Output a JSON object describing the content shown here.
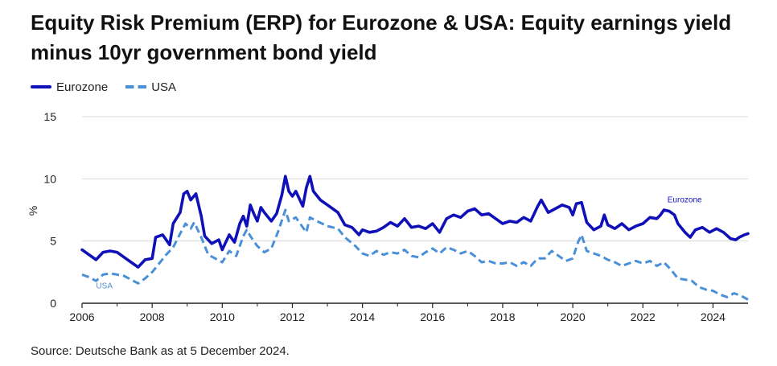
{
  "header": {
    "title": "Equity Risk Premium (ERP) for Eurozone & USA: Equity earnings yield minus 10yr government bond yield"
  },
  "legend": {
    "items": [
      {
        "label": "Eurozone",
        "style": "solid"
      },
      {
        "label": "USA",
        "style": "dashed"
      }
    ]
  },
  "footer": {
    "source": "Source: Deutsche Bank as at 5 December 2024."
  },
  "colors": {
    "eurozone": "#1010b8",
    "usa": "#4a90d9",
    "grid": "#d9d9d9",
    "axis": "#222222"
  },
  "chart_data": {
    "type": "line",
    "ylabel": "%",
    "xlim": [
      2006,
      2025
    ],
    "ylim": [
      0,
      15
    ],
    "x_ticks": [
      2006,
      2008,
      2010,
      2012,
      2014,
      2016,
      2018,
      2020,
      2022,
      2024
    ],
    "y_ticks": [
      0,
      5,
      10,
      15
    ],
    "grid": "horizontal",
    "legend_position": "top-left",
    "annotations": [
      {
        "text": "Eurozone",
        "x": 2022.7,
        "y": 8.1
      },
      {
        "text": "USA",
        "x": 2006.4,
        "y": 1.2
      }
    ],
    "series": [
      {
        "name": "Eurozone",
        "style": "solid",
        "points": [
          [
            2006.0,
            4.3
          ],
          [
            2006.2,
            3.9
          ],
          [
            2006.4,
            3.5
          ],
          [
            2006.6,
            4.1
          ],
          [
            2006.8,
            4.2
          ],
          [
            2007.0,
            4.1
          ],
          [
            2007.2,
            3.7
          ],
          [
            2007.4,
            3.3
          ],
          [
            2007.6,
            2.9
          ],
          [
            2007.8,
            3.5
          ],
          [
            2008.0,
            3.6
          ],
          [
            2008.1,
            5.3
          ],
          [
            2008.3,
            5.5
          ],
          [
            2008.5,
            4.7
          ],
          [
            2008.6,
            6.4
          ],
          [
            2008.8,
            7.3
          ],
          [
            2008.9,
            8.8
          ],
          [
            2009.0,
            9.0
          ],
          [
            2009.1,
            8.3
          ],
          [
            2009.25,
            8.8
          ],
          [
            2009.4,
            7.0
          ],
          [
            2009.5,
            5.4
          ],
          [
            2009.7,
            4.8
          ],
          [
            2009.9,
            5.1
          ],
          [
            2010.0,
            4.3
          ],
          [
            2010.2,
            5.5
          ],
          [
            2010.35,
            4.9
          ],
          [
            2010.5,
            6.4
          ],
          [
            2010.6,
            7.0
          ],
          [
            2010.7,
            6.2
          ],
          [
            2010.8,
            7.9
          ],
          [
            2010.9,
            7.2
          ],
          [
            2011.0,
            6.6
          ],
          [
            2011.1,
            7.7
          ],
          [
            2011.2,
            7.3
          ],
          [
            2011.4,
            6.6
          ],
          [
            2011.55,
            7.2
          ],
          [
            2011.7,
            8.7
          ],
          [
            2011.8,
            10.2
          ],
          [
            2011.9,
            9.0
          ],
          [
            2012.0,
            8.6
          ],
          [
            2012.1,
            9.0
          ],
          [
            2012.3,
            7.8
          ],
          [
            2012.4,
            9.3
          ],
          [
            2012.5,
            10.2
          ],
          [
            2012.6,
            9.0
          ],
          [
            2012.8,
            8.3
          ],
          [
            2013.0,
            7.9
          ],
          [
            2013.3,
            7.3
          ],
          [
            2013.5,
            6.3
          ],
          [
            2013.7,
            6.1
          ],
          [
            2013.9,
            5.5
          ],
          [
            2014.0,
            5.9
          ],
          [
            2014.2,
            5.7
          ],
          [
            2014.4,
            5.8
          ],
          [
            2014.6,
            6.1
          ],
          [
            2014.8,
            6.5
          ],
          [
            2015.0,
            6.2
          ],
          [
            2015.2,
            6.8
          ],
          [
            2015.4,
            6.1
          ],
          [
            2015.6,
            6.2
          ],
          [
            2015.8,
            6.0
          ],
          [
            2016.0,
            6.4
          ],
          [
            2016.2,
            5.7
          ],
          [
            2016.4,
            6.8
          ],
          [
            2016.6,
            7.1
          ],
          [
            2016.8,
            6.9
          ],
          [
            2017.0,
            7.4
          ],
          [
            2017.2,
            7.6
          ],
          [
            2017.4,
            7.1
          ],
          [
            2017.6,
            7.2
          ],
          [
            2017.8,
            6.8
          ],
          [
            2018.0,
            6.4
          ],
          [
            2018.2,
            6.6
          ],
          [
            2018.4,
            6.5
          ],
          [
            2018.6,
            6.9
          ],
          [
            2018.8,
            6.6
          ],
          [
            2019.0,
            7.8
          ],
          [
            2019.1,
            8.3
          ],
          [
            2019.3,
            7.3
          ],
          [
            2019.5,
            7.6
          ],
          [
            2019.7,
            7.9
          ],
          [
            2019.9,
            7.7
          ],
          [
            2020.0,
            7.1
          ],
          [
            2020.1,
            8.0
          ],
          [
            2020.25,
            8.1
          ],
          [
            2020.4,
            6.5
          ],
          [
            2020.6,
            5.9
          ],
          [
            2020.8,
            6.2
          ],
          [
            2020.9,
            7.1
          ],
          [
            2021.0,
            6.3
          ],
          [
            2021.2,
            6.0
          ],
          [
            2021.4,
            6.4
          ],
          [
            2021.6,
            5.9
          ],
          [
            2021.8,
            6.2
          ],
          [
            2022.0,
            6.4
          ],
          [
            2022.2,
            6.9
          ],
          [
            2022.4,
            6.8
          ],
          [
            2022.5,
            7.1
          ],
          [
            2022.6,
            7.5
          ],
          [
            2022.75,
            7.4
          ],
          [
            2022.9,
            7.1
          ],
          [
            2023.0,
            6.4
          ],
          [
            2023.2,
            5.7
          ],
          [
            2023.35,
            5.3
          ],
          [
            2023.5,
            5.9
          ],
          [
            2023.7,
            6.1
          ],
          [
            2023.9,
            5.7
          ],
          [
            2024.1,
            6.0
          ],
          [
            2024.3,
            5.7
          ],
          [
            2024.5,
            5.2
          ],
          [
            2024.65,
            5.1
          ],
          [
            2024.75,
            5.3
          ],
          [
            2024.9,
            5.5
          ],
          [
            2025.0,
            5.6
          ]
        ]
      },
      {
        "name": "USA",
        "style": "dashed",
        "points": [
          [
            2006.0,
            2.3
          ],
          [
            2006.2,
            2.1
          ],
          [
            2006.4,
            1.8
          ],
          [
            2006.6,
            2.3
          ],
          [
            2006.8,
            2.4
          ],
          [
            2007.0,
            2.3
          ],
          [
            2007.2,
            2.2
          ],
          [
            2007.4,
            1.9
          ],
          [
            2007.6,
            1.6
          ],
          [
            2007.8,
            2.0
          ],
          [
            2008.0,
            2.5
          ],
          [
            2008.2,
            3.2
          ],
          [
            2008.4,
            3.9
          ],
          [
            2008.6,
            4.5
          ],
          [
            2008.8,
            5.6
          ],
          [
            2008.95,
            6.4
          ],
          [
            2009.1,
            6.0
          ],
          [
            2009.2,
            6.5
          ],
          [
            2009.4,
            5.3
          ],
          [
            2009.6,
            3.9
          ],
          [
            2009.8,
            3.6
          ],
          [
            2010.0,
            3.3
          ],
          [
            2010.2,
            4.2
          ],
          [
            2010.4,
            3.8
          ],
          [
            2010.6,
            5.4
          ],
          [
            2010.7,
            5.9
          ],
          [
            2010.8,
            5.4
          ],
          [
            2011.0,
            4.6
          ],
          [
            2011.2,
            4.1
          ],
          [
            2011.4,
            4.4
          ],
          [
            2011.6,
            5.8
          ],
          [
            2011.8,
            7.5
          ],
          [
            2011.9,
            6.6
          ],
          [
            2012.1,
            6.9
          ],
          [
            2012.3,
            6.1
          ],
          [
            2012.4,
            5.7
          ],
          [
            2012.5,
            6.9
          ],
          [
            2012.7,
            6.6
          ],
          [
            2013.0,
            6.2
          ],
          [
            2013.3,
            6.0
          ],
          [
            2013.5,
            5.3
          ],
          [
            2013.8,
            4.6
          ],
          [
            2014.0,
            4.0
          ],
          [
            2014.2,
            3.8
          ],
          [
            2014.4,
            4.2
          ],
          [
            2014.6,
            3.9
          ],
          [
            2014.8,
            4.1
          ],
          [
            2015.0,
            4.0
          ],
          [
            2015.2,
            4.3
          ],
          [
            2015.4,
            3.8
          ],
          [
            2015.6,
            3.7
          ],
          [
            2015.8,
            4.1
          ],
          [
            2016.0,
            4.4
          ],
          [
            2016.2,
            4.0
          ],
          [
            2016.4,
            4.5
          ],
          [
            2016.6,
            4.3
          ],
          [
            2016.8,
            4.0
          ],
          [
            2017.0,
            4.2
          ],
          [
            2017.2,
            3.8
          ],
          [
            2017.4,
            3.3
          ],
          [
            2017.6,
            3.4
          ],
          [
            2017.8,
            3.2
          ],
          [
            2018.0,
            3.2
          ],
          [
            2018.2,
            3.3
          ],
          [
            2018.4,
            3.0
          ],
          [
            2018.6,
            3.3
          ],
          [
            2018.8,
            3.0
          ],
          [
            2019.0,
            3.6
          ],
          [
            2019.2,
            3.6
          ],
          [
            2019.4,
            4.2
          ],
          [
            2019.6,
            3.8
          ],
          [
            2019.8,
            3.4
          ],
          [
            2020.0,
            3.6
          ],
          [
            2020.15,
            4.9
          ],
          [
            2020.25,
            5.5
          ],
          [
            2020.4,
            4.2
          ],
          [
            2020.6,
            4.0
          ],
          [
            2020.8,
            3.8
          ],
          [
            2021.0,
            3.5
          ],
          [
            2021.2,
            3.3
          ],
          [
            2021.4,
            3.0
          ],
          [
            2021.6,
            3.2
          ],
          [
            2021.8,
            3.4
          ],
          [
            2022.0,
            3.2
          ],
          [
            2022.2,
            3.4
          ],
          [
            2022.4,
            3.0
          ],
          [
            2022.6,
            3.3
          ],
          [
            2022.8,
            2.7
          ],
          [
            2023.0,
            2.0
          ],
          [
            2023.2,
            1.9
          ],
          [
            2023.4,
            1.8
          ],
          [
            2023.6,
            1.3
          ],
          [
            2023.8,
            1.1
          ],
          [
            2024.0,
            1.0
          ],
          [
            2024.2,
            0.7
          ],
          [
            2024.4,
            0.5
          ],
          [
            2024.6,
            0.8
          ],
          [
            2024.8,
            0.6
          ],
          [
            2025.0,
            0.3
          ]
        ]
      }
    ]
  }
}
